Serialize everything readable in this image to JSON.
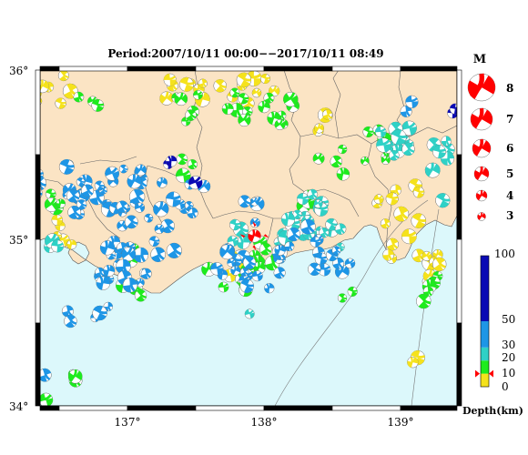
{
  "title": "Period:2007/10/11 00:00−−2017/10/11 08:49",
  "map": {
    "lat_ticks": [
      {
        "value": 36,
        "label": "36°"
      },
      {
        "value": 35,
        "label": "35°"
      },
      {
        "value": 34,
        "label": "34°"
      }
    ],
    "lon_ticks": [
      {
        "value": 137,
        "label": "137°"
      },
      {
        "value": 138,
        "label": "138°"
      },
      {
        "value": 139,
        "label": "139°"
      }
    ],
    "land_color": "#fbe4c4",
    "sea_color": "#dcf8fb"
  },
  "mainshock": {
    "lon": 137.93,
    "lat": 35.02,
    "depth_km": 10
  },
  "magnitude_legend": {
    "title": "M",
    "items": [
      "8",
      "7",
      "6",
      "5",
      "4",
      "3"
    ]
  },
  "depth_scale": {
    "label": "Depth(km)",
    "ticks": [
      "100",
      "50",
      "30",
      "20",
      "10",
      "0"
    ],
    "bands": [
      {
        "from": 0,
        "to": 10,
        "color": "#f5e21c"
      },
      {
        "from": 10,
        "to": 20,
        "color": "#1eeb1e"
      },
      {
        "from": 20,
        "to": 30,
        "color": "#2fd1c6"
      },
      {
        "from": 30,
        "to": 50,
        "color": "#1e96e6"
      },
      {
        "from": 50,
        "to": 100,
        "color": "#0a0ab4"
      }
    ]
  },
  "colors": {
    "yellow": "#f5e21c",
    "green": "#1eeb1e",
    "cyan": "#2fd1c6",
    "blue": "#1e96e6",
    "navy": "#0a0ab4",
    "red": "#ff0000"
  }
}
